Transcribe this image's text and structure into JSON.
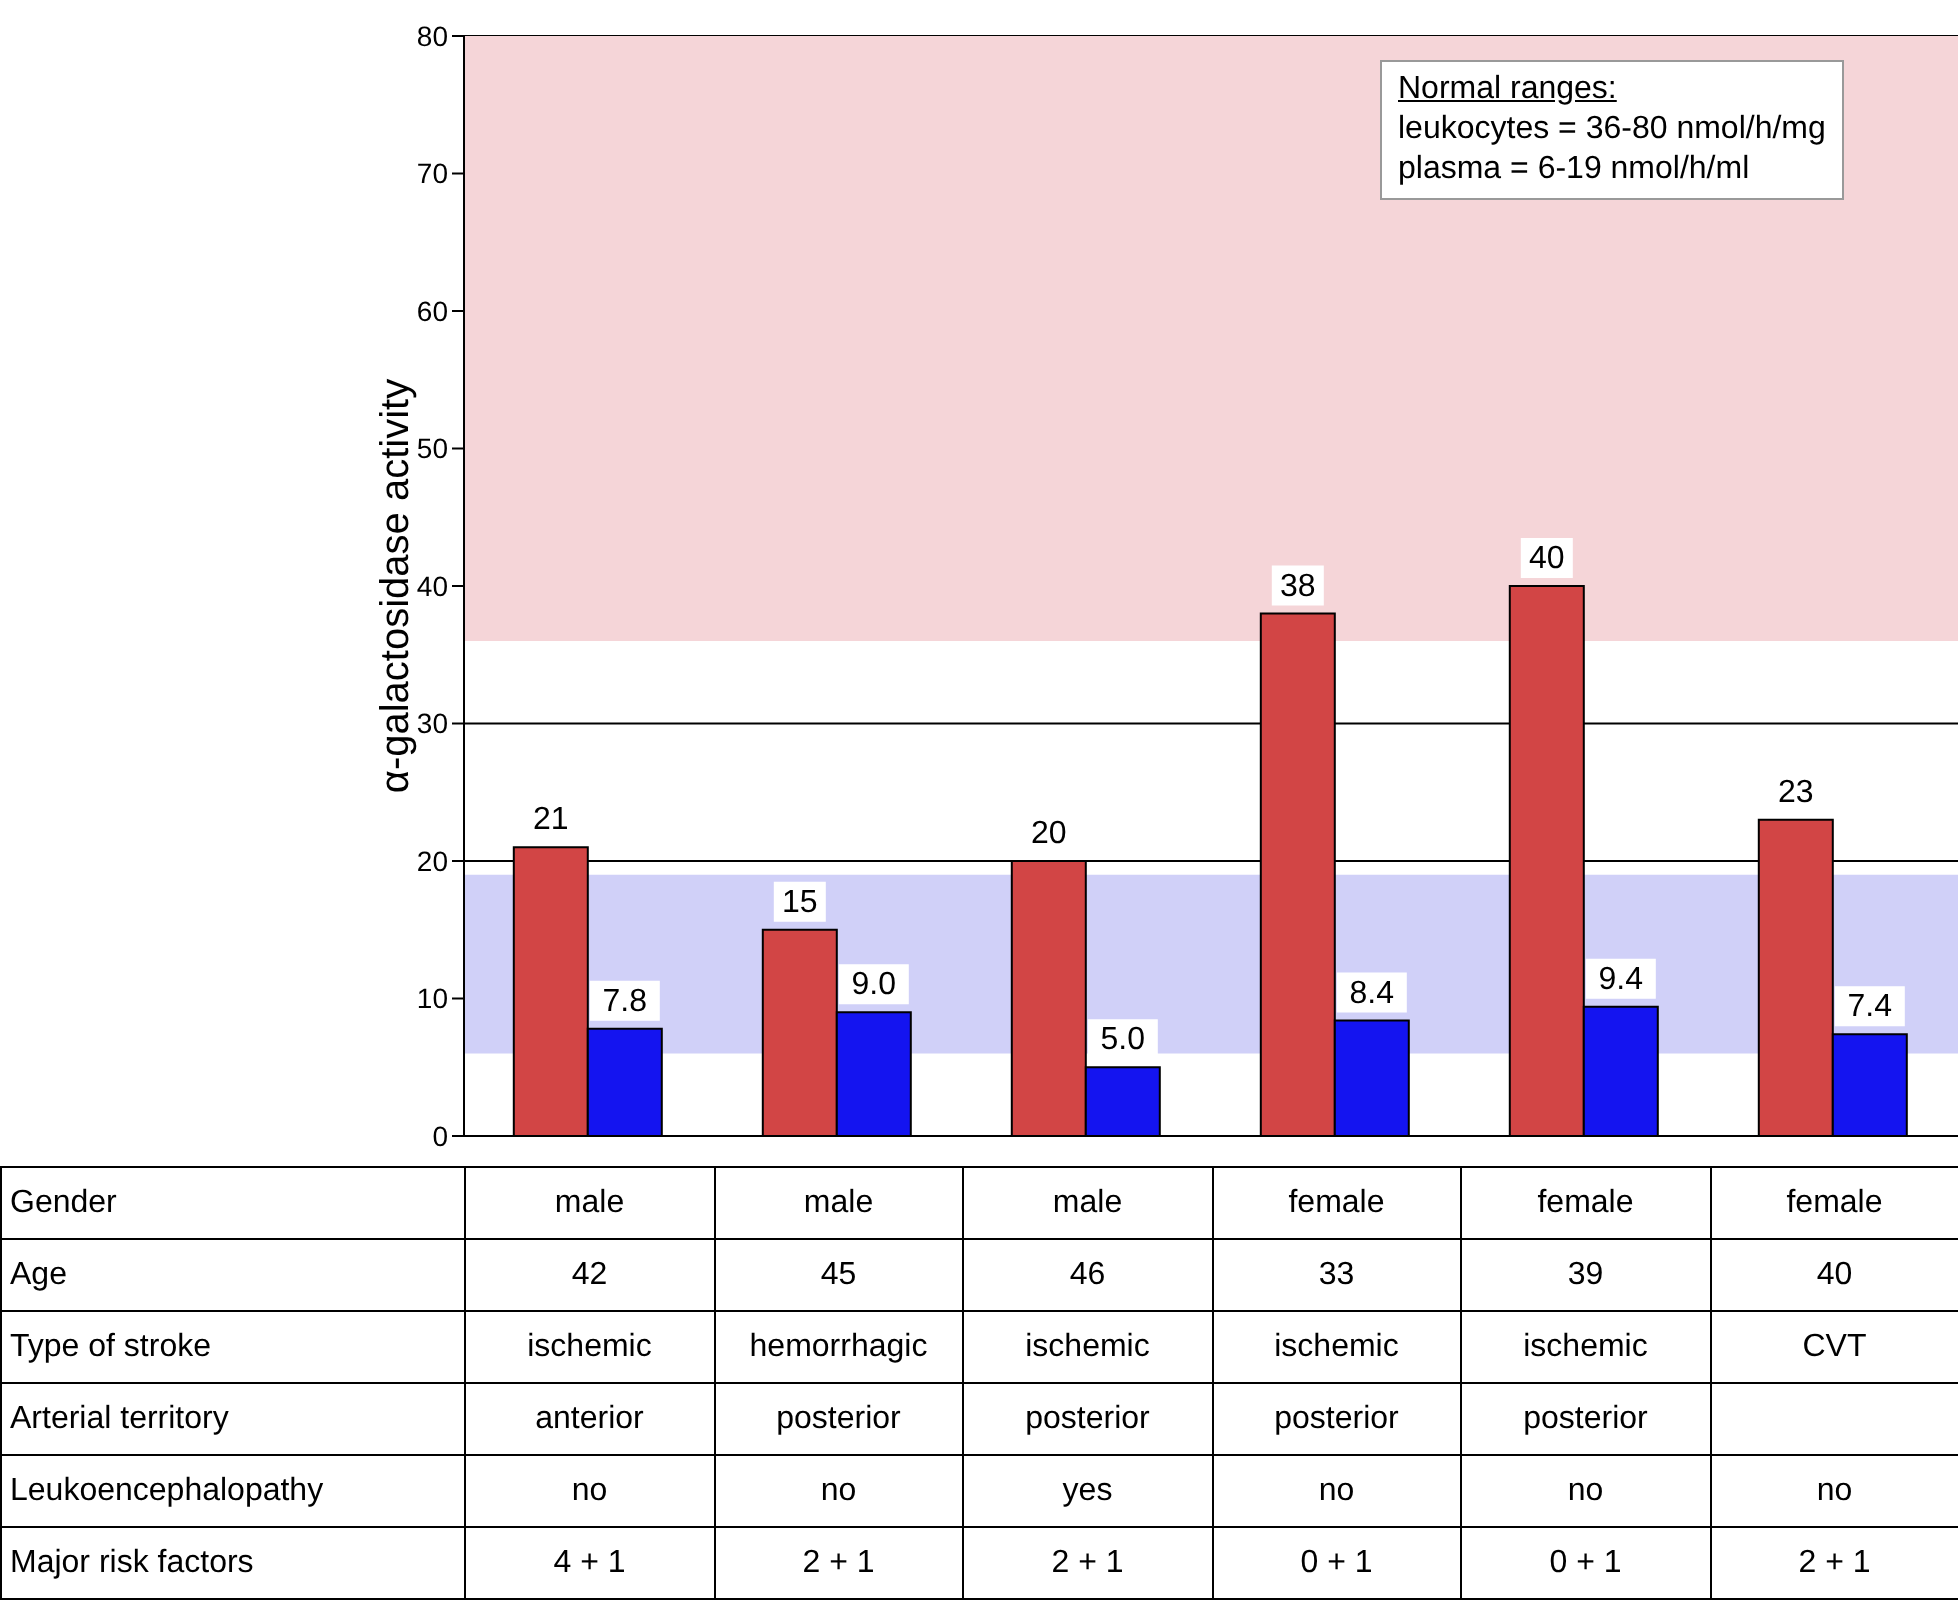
{
  "chart_data": {
    "type": "bar",
    "ylabel": "α-galactosidase activity",
    "categories": [
      null,
      null,
      null,
      null,
      null,
      null
    ],
    "series": [
      {
        "color": "#d24545",
        "values": [
          21,
          15,
          20,
          38,
          40,
          23
        ],
        "value_labels": [
          "21",
          "15",
          "20",
          "38",
          "40",
          "23"
        ]
      },
      {
        "color": "#1414f0",
        "values": [
          7.8,
          9.0,
          5.0,
          8.4,
          9.4,
          7.4
        ],
        "value_labels": [
          "7.8",
          "9.0",
          "5.0",
          "8.4",
          "9.4",
          "7.4"
        ]
      }
    ],
    "ylim": [
      0,
      80
    ],
    "yticks": [
      0,
      10,
      20,
      30,
      40,
      50,
      60,
      70,
      80
    ],
    "grid": "y",
    "legend": false,
    "bands": [
      {
        "axis": "y",
        "from": 36,
        "to": 80,
        "color": "#f5d5d8"
      },
      {
        "axis": "y",
        "from": 6,
        "to": 19,
        "color": "#d0d0f8"
      }
    ],
    "annotations": [
      "Normal ranges:",
      "leukocytes = 36-80 nmol/h/mg",
      "plasma = 6-19 nmol/h/ml",
      "Gender",
      "male",
      "male",
      "male",
      "female",
      "female",
      "female",
      "Age",
      "42",
      "45",
      "46",
      "33",
      "39",
      "40",
      "Type of stroke",
      "ischemic",
      "hemorrhagic",
      "ischemic",
      "ischemic",
      "ischemic",
      "CVT",
      "Arterial territory",
      "anterior",
      "posterior",
      "posterior",
      "posterior",
      "posterior",
      null,
      "Leukoencephalopathy",
      "no",
      "no",
      "yes",
      "no",
      "no",
      "no",
      "Major risk factors",
      "4 + 1",
      "2 + 1",
      "2 + 1",
      "0 + 1",
      "0 + 1",
      "2 + 1"
    ]
  }
}
